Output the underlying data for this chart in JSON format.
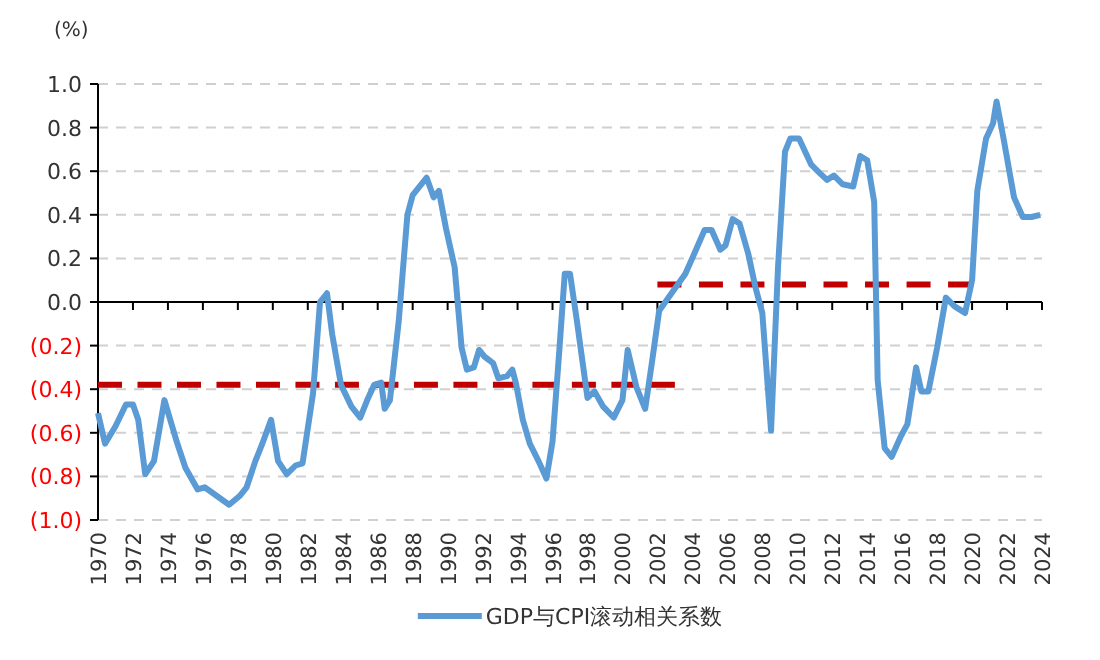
{
  "chart_data": {
    "type": "line",
    "ylabel": "(%)",
    "xlim": [
      1970,
      2024
    ],
    "xticks": [
      1970,
      1972,
      1974,
      1976,
      1978,
      1980,
      1982,
      1984,
      1986,
      1988,
      1990,
      1992,
      1994,
      1996,
      1998,
      2000,
      2002,
      2004,
      2006,
      2008,
      2010,
      2012,
      2014,
      2016,
      2018,
      2020,
      2022,
      2024
    ],
    "ylim": [
      -1,
      1
    ],
    "yticks": [
      {
        "value": 1,
        "label": "1.0"
      },
      {
        "value": 0.8,
        "label": "0.8"
      },
      {
        "value": 0.6,
        "label": "0.6"
      },
      {
        "value": 0.4,
        "label": "0.4"
      },
      {
        "value": 0.2,
        "label": "0.2"
      },
      {
        "value": 0,
        "label": "0.0"
      },
      {
        "value": -0.2,
        "label": "(0.2)"
      },
      {
        "value": -0.4,
        "label": "(0.4)"
      },
      {
        "value": -0.6,
        "label": "(0.6)"
      },
      {
        "value": -0.8,
        "label": "(0.8)"
      },
      {
        "value": -1,
        "label": "(1.0)"
      }
    ],
    "grid": "y",
    "legend": "bottom",
    "marker": "none",
    "series": [
      {
        "name": "GDP与CPI滚动相关系数",
        "color": "#5b9bd5",
        "line_style": "solid",
        "x": [
          1970,
          1970.4,
          1971.0,
          1971.6,
          1972.0,
          1972.3,
          1972.7,
          1973.2,
          1973.8,
          1974.5,
          1975.0,
          1975.7,
          1976.1,
          1976.8,
          1977.5,
          1978.1,
          1978.5,
          1979.0,
          1979.4,
          1979.9,
          1980.3,
          1980.8,
          1981.3,
          1981.7,
          1982.3,
          1982.7,
          1983.1,
          1983.4,
          1983.9,
          1984.5,
          1985.0,
          1985.4,
          1985.8,
          1986.2,
          1986.4,
          1986.7,
          1987.2,
          1987.7,
          1988.0,
          1988.4,
          1988.8,
          1989.2,
          1989.5,
          1989.9,
          1990.4,
          1990.8,
          1991.1,
          1991.5,
          1991.8,
          1992.1,
          1992.6,
          1992.9,
          1993.4,
          1993.7,
          1993.9,
          1994.3,
          1994.7,
          1995.2,
          1995.65,
          1996.0,
          1996.4,
          1996.7,
          1997.0,
          1997.4,
          1998.0,
          1998.4,
          1998.9,
          1999.5,
          2000.0,
          2000.3,
          2000.8,
          2001.3,
          2001.7,
          2002.1,
          2002.9,
          2003.6,
          2004.1,
          2004.7,
          2005.1,
          2005.6,
          2005.9,
          2006.3,
          2006.7,
          2007.2,
          2007.6,
          2008.0,
          2008.5,
          2008.9,
          2009.3,
          2009.6,
          2010.1,
          2010.8,
          2011.3,
          2011.7,
          2012.1,
          2012.6,
          2013.2,
          2013.6,
          2014.0,
          2014.4,
          2014.6,
          2015.0,
          2015.4,
          2015.9,
          2016.3,
          2016.8,
          2017.1,
          2017.5,
          2018.0,
          2018.5,
          2019.0,
          2019.6,
          2020.0,
          2020.3,
          2020.8,
          2021.2,
          2021.4,
          2021.8,
          2022.4,
          2022.9,
          2023.4,
          2023.9
        ],
        "values": [
          -0.51,
          -0.65,
          -0.57,
          -0.47,
          -0.47,
          -0.54,
          -0.79,
          -0.73,
          -0.45,
          -0.64,
          -0.76,
          -0.86,
          -0.85,
          -0.89,
          -0.93,
          -0.89,
          -0.85,
          -0.73,
          -0.65,
          -0.54,
          -0.73,
          -0.79,
          -0.75,
          -0.74,
          -0.42,
          0.0,
          0.04,
          -0.15,
          -0.38,
          -0.48,
          -0.53,
          -0.45,
          -0.38,
          -0.37,
          -0.49,
          -0.45,
          -0.09,
          0.4,
          0.49,
          0.53,
          0.57,
          0.48,
          0.51,
          0.34,
          0.16,
          -0.21,
          -0.31,
          -0.3,
          -0.22,
          -0.25,
          -0.28,
          -0.35,
          -0.34,
          -0.31,
          -0.37,
          -0.54,
          -0.65,
          -0.73,
          -0.81,
          -0.64,
          -0.21,
          0.13,
          0.13,
          -0.09,
          -0.44,
          -0.41,
          -0.48,
          -0.53,
          -0.45,
          -0.22,
          -0.39,
          -0.49,
          -0.27,
          -0.04,
          0.05,
          0.13,
          0.22,
          0.33,
          0.33,
          0.24,
          0.26,
          0.38,
          0.36,
          0.22,
          0.07,
          -0.05,
          -0.59,
          0.16,
          0.69,
          0.75,
          0.75,
          0.63,
          0.59,
          0.56,
          0.58,
          0.54,
          0.53,
          0.67,
          0.65,
          0.46,
          -0.36,
          -0.67,
          -0.71,
          -0.62,
          -0.56,
          -0.3,
          -0.41,
          -0.41,
          -0.21,
          0.02,
          -0.02,
          -0.05,
          0.1,
          0.51,
          0.75,
          0.82,
          0.92,
          0.75,
          0.48,
          0.39,
          0.39,
          0.4
        ]
      },
      {
        "color": "#c00000",
        "line_style": "dashed",
        "x": [
          1970,
          2003
        ],
        "values": [
          -0.38,
          -0.38
        ]
      },
      {
        "color": "#c00000",
        "line_style": "dashed",
        "x": [
          2002,
          2020
        ],
        "values": [
          0.08,
          0.08
        ]
      }
    ]
  }
}
